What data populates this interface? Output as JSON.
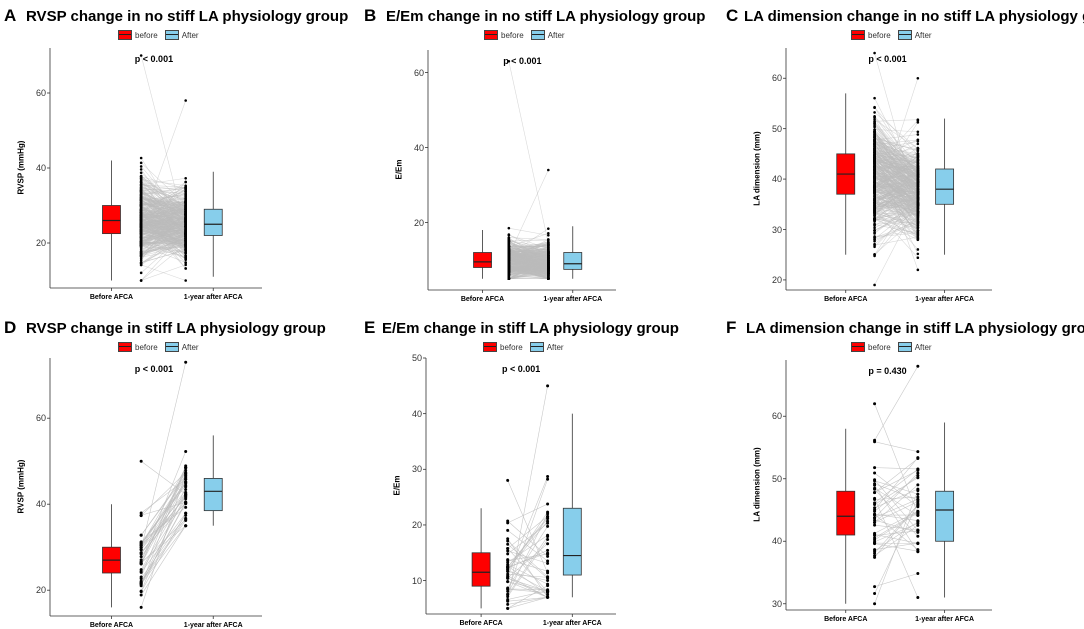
{
  "legend": {
    "before_label": "before",
    "after_label": "After"
  },
  "colors": {
    "before": "#ff0000",
    "after": "#87ceeb",
    "lines": "#bbbbbb",
    "points": "#000000"
  },
  "chart_data": [
    {
      "panel_label": "A",
      "title": "RVSP change in no stiff LA physiology group",
      "type": "box",
      "ylabel": "RVSP (mmHg)",
      "categories": [
        "Before AFCA",
        "1-year after AFCA"
      ],
      "ylim": [
        8,
        72
      ],
      "yticks": [
        20,
        40,
        60
      ],
      "p_value": "p < 0.001",
      "boxes": [
        {
          "name": "before",
          "min": 10,
          "q1": 22.5,
          "median": 26,
          "q3": 30,
          "max": 42
        },
        {
          "name": "After",
          "min": 11,
          "q1": 22,
          "median": 25,
          "q3": 29,
          "max": 39
        }
      ],
      "n_pairs": 420,
      "point_range_before": [
        10,
        70
      ],
      "point_range_after": [
        10,
        58
      ],
      "dense_lines": true
    },
    {
      "panel_label": "B",
      "title": "E/Em change in no stiff LA physiology group",
      "type": "box",
      "ylabel": "E/Em",
      "categories": [
        "Before AFCA",
        "1-year after AFCA"
      ],
      "ylim": [
        2,
        66
      ],
      "yticks": [
        20,
        40,
        60
      ],
      "p_value": "p < 0.001",
      "boxes": [
        {
          "name": "before",
          "min": 5,
          "q1": 8,
          "median": 9.5,
          "q3": 12,
          "max": 18
        },
        {
          "name": "After",
          "min": 5,
          "q1": 7.5,
          "median": 9,
          "q3": 12,
          "max": 19
        }
      ],
      "n_pairs": 420,
      "point_range_before": [
        5,
        63
      ],
      "point_range_after": [
        5,
        34
      ],
      "dense_lines": true
    },
    {
      "panel_label": "C",
      "title": "LA dimension change in no stiff LA physiology group",
      "type": "box",
      "ylabel": "LA dimension (mm)",
      "categories": [
        "Before AFCA",
        "1-year after AFCA"
      ],
      "ylim": [
        18,
        66
      ],
      "yticks": [
        20,
        30,
        40,
        50,
        60
      ],
      "p_value": "p < 0.001",
      "boxes": [
        {
          "name": "before",
          "min": 25,
          "q1": 37,
          "median": 41,
          "q3": 45,
          "max": 57
        },
        {
          "name": "After",
          "min": 25,
          "q1": 35,
          "median": 38,
          "q3": 42,
          "max": 52
        }
      ],
      "n_pairs": 420,
      "point_range_before": [
        19,
        65
      ],
      "point_range_after": [
        22,
        60
      ],
      "dense_lines": true
    },
    {
      "panel_label": "D",
      "title": "RVSP change in stiff LA physiology group",
      "type": "box",
      "ylabel": "RVSP (mmHg)",
      "categories": [
        "Before AFCA",
        "1-year after AFCA"
      ],
      "ylim": [
        14,
        74
      ],
      "yticks": [
        20,
        40,
        60
      ],
      "p_value": "p < 0.001",
      "boxes": [
        {
          "name": "before",
          "min": 16,
          "q1": 24,
          "median": 27,
          "q3": 30,
          "max": 40
        },
        {
          "name": "After",
          "min": 35,
          "q1": 38.5,
          "median": 43,
          "q3": 46,
          "max": 56
        }
      ],
      "n_pairs": 45,
      "point_range_before": [
        16,
        50
      ],
      "point_range_after": [
        35,
        73
      ],
      "dense_lines": false
    },
    {
      "panel_label": "E",
      "title": "E/Em change in stiff LA physiology group",
      "type": "box",
      "ylabel": "E/Em",
      "categories": [
        "Before AFCA",
        "1-year after AFCA"
      ],
      "ylim": [
        4,
        50
      ],
      "yticks": [
        10,
        20,
        30,
        40,
        50
      ],
      "p_value": "p < 0.001",
      "boxes": [
        {
          "name": "before",
          "min": 5,
          "q1": 9,
          "median": 11.5,
          "q3": 15,
          "max": 23
        },
        {
          "name": "After",
          "min": 7,
          "q1": 11,
          "median": 14.5,
          "q3": 23,
          "max": 40
        }
      ],
      "n_pairs": 45,
      "point_range_before": [
        5,
        28
      ],
      "point_range_after": [
        7,
        45
      ],
      "dense_lines": false
    },
    {
      "panel_label": "F",
      "title": "LA dimension change in stiff LA physiology group",
      "type": "box",
      "ylabel": "LA dimension (mm)",
      "categories": [
        "Before AFCA",
        "1-year after AFCA"
      ],
      "ylim": [
        29,
        69
      ],
      "yticks": [
        30,
        40,
        50,
        60
      ],
      "p_value": "p = 0.430",
      "boxes": [
        {
          "name": "before",
          "min": 30,
          "q1": 41,
          "median": 44,
          "q3": 48,
          "max": 58
        },
        {
          "name": "After",
          "min": 31,
          "q1": 40,
          "median": 45,
          "q3": 48,
          "max": 59
        }
      ],
      "n_pairs": 45,
      "point_range_before": [
        30,
        62
      ],
      "point_range_after": [
        31,
        68
      ],
      "dense_lines": false
    }
  ]
}
